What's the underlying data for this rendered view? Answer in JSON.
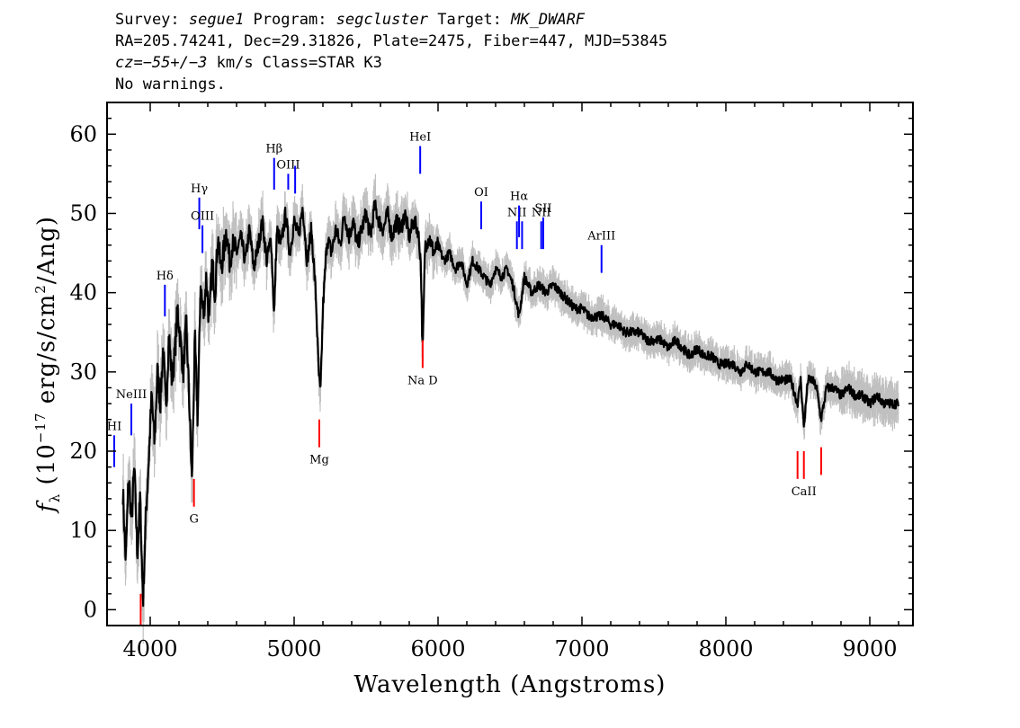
{
  "header": {
    "line1": {
      "survey_label": "Survey: ",
      "survey": "segue1",
      "program_label": " Program: ",
      "program": "segcluster",
      "target_label": " Target: ",
      "target": "MK_DWARF"
    },
    "line2": "RA=205.74241, Dec=29.31826, Plate=2475, Fiber=447, MJD=53845",
    "line3": {
      "cz_label": "cz",
      "cz_value": "=−55+/−3",
      "cz_rest": " km/s Class=STAR K3"
    },
    "line4": "No warnings."
  },
  "chart_data": {
    "type": "line",
    "xlabel": "Wavelength (Angstroms)",
    "ylabel": "f_λ (10^-17 erg/s/cm^2/Ang)",
    "xlim": [
      3700,
      9300
    ],
    "ylim": [
      -2,
      64
    ],
    "xticks": [
      4000,
      5000,
      6000,
      7000,
      8000,
      9000
    ],
    "yticks": [
      0,
      10,
      20,
      30,
      40,
      50,
      60
    ],
    "colors": {
      "flux": "#000000",
      "error": "#c0c0c0",
      "emission": "#0000ff",
      "absorption": "#ff0000"
    },
    "series": [
      {
        "x": [
          3810,
          3830,
          3850,
          3870,
          3890,
          3910,
          3930,
          3950,
          3970,
          3990,
          4010,
          4030,
          4050,
          4070,
          4090,
          4110,
          4130,
          4150,
          4170,
          4190,
          4210,
          4230,
          4250,
          4270,
          4290,
          4310,
          4330,
          4350,
          4370,
          4390,
          4410,
          4430,
          4450,
          4470,
          4490,
          4510,
          4530,
          4550,
          4570,
          4600,
          4630,
          4660,
          4690,
          4720,
          4750,
          4780,
          4810,
          4840,
          4861,
          4880,
          4910,
          4940,
          4970,
          5000,
          5030,
          5060,
          5090,
          5120,
          5150,
          5170,
          5183,
          5200,
          5230,
          5260,
          5290,
          5320,
          5350,
          5380,
          5410,
          5440,
          5470,
          5500,
          5530,
          5560,
          5590,
          5620,
          5650,
          5680,
          5710,
          5740,
          5770,
          5800,
          5830,
          5860,
          5880,
          5893,
          5910,
          5940,
          5970,
          6000,
          6040,
          6080,
          6120,
          6160,
          6200,
          6240,
          6280,
          6320,
          6360,
          6400,
          6440,
          6480,
          6520,
          6563,
          6600,
          6650,
          6700,
          6750,
          6800,
          6850,
          6900,
          6950,
          7000,
          7050,
          7100,
          7150,
          7200,
          7250,
          7300,
          7350,
          7400,
          7450,
          7500,
          7550,
          7600,
          7650,
          7700,
          7750,
          7800,
          7850,
          7900,
          7950,
          8000,
          8050,
          8100,
          8150,
          8200,
          8250,
          8300,
          8350,
          8400,
          8450,
          8498,
          8520,
          8542,
          8570,
          8600,
          8630,
          8662,
          8700,
          8750,
          8800,
          8850,
          8900,
          8950,
          9000,
          9050,
          9100,
          9150,
          9200
        ],
        "y": [
          15,
          6,
          17,
          11,
          18,
          7,
          14,
          1,
          12,
          19,
          27,
          21,
          30,
          26,
          33,
          25,
          35,
          29,
          32,
          38,
          34,
          30,
          36,
          27,
          16,
          34,
          24,
          41,
          37,
          42,
          36,
          44,
          40,
          47,
          43,
          45,
          48,
          44,
          46,
          45,
          47,
          44,
          48,
          43,
          46,
          49,
          44,
          47,
          37,
          48,
          46,
          50,
          45,
          49,
          47,
          51,
          44,
          48,
          40,
          30,
          27,
          38,
          47,
          45,
          48,
          46,
          50,
          47,
          49,
          46,
          48,
          50,
          47,
          51,
          49,
          48,
          50,
          47,
          49,
          48,
          50,
          47,
          49,
          48,
          44,
          32,
          46,
          47,
          45,
          46,
          44,
          45,
          43,
          44,
          41,
          44,
          43,
          42,
          41,
          43,
          42,
          43,
          41,
          37,
          42,
          40,
          41,
          40,
          41,
          40,
          39,
          38,
          38,
          37,
          37,
          37,
          36,
          36,
          35,
          35,
          35,
          34,
          34,
          34,
          33,
          34,
          33,
          32,
          33,
          32,
          32,
          31,
          31,
          31,
          30,
          31,
          30,
          30,
          30,
          29,
          29,
          29,
          26,
          29,
          23,
          29,
          29,
          28,
          24,
          28,
          28,
          27,
          28,
          27,
          27,
          26,
          27,
          26,
          26,
          26
        ]
      }
    ],
    "emission_lines": [
      {
        "name": "HI",
        "x": 3750,
        "y_top": 22,
        "y_bottom": 18
      },
      {
        "name": "NeIII",
        "x": 3869,
        "y_top": 26,
        "y_bottom": 22
      },
      {
        "name": "Hδ",
        "x": 4102,
        "y_top": 41,
        "y_bottom": 37
      },
      {
        "name": "Hγ",
        "x": 4341,
        "y_top": 52,
        "y_bottom": 48
      },
      {
        "name": "OIII",
        "x": 4363,
        "y_top": 48.5,
        "y_bottom": 45
      },
      {
        "name": "Hβ",
        "x": 4861,
        "y_top": 57,
        "y_bottom": 53
      },
      {
        "name": "OIII",
        "x": 4959,
        "y_top": 55,
        "y_bottom": 53
      },
      {
        "name": "",
        "x": 5007,
        "y_top": 56,
        "y_bottom": 52.5
      },
      {
        "name": "HeI",
        "x": 5876,
        "y_top": 58.5,
        "y_bottom": 55
      },
      {
        "name": "OI",
        "x": 6300,
        "y_top": 51.5,
        "y_bottom": 48
      },
      {
        "name": "NII",
        "x": 6548,
        "y_top": 49,
        "y_bottom": 45.5
      },
      {
        "name": "Hα",
        "x": 6563,
        "y_top": 51,
        "y_bottom": 47
      },
      {
        "name": "",
        "x": 6584,
        "y_top": 49,
        "y_bottom": 45.5
      },
      {
        "name": "NII",
        "x": 6717,
        "y_top": 49,
        "y_bottom": 45.5
      },
      {
        "name": "SII",
        "x": 6731,
        "y_top": 49.5,
        "y_bottom": 45.5
      },
      {
        "name": "ArIII",
        "x": 7136,
        "y_top": 46,
        "y_bottom": 42.5
      }
    ],
    "absorption_lines": [
      {
        "name": "",
        "x": 3934,
        "y_top": 2,
        "y_bottom": -2
      },
      {
        "name": "G",
        "x": 4304,
        "y_top": 16.5,
        "y_bottom": 13
      },
      {
        "name": "Mg",
        "x": 5175,
        "y_top": 24,
        "y_bottom": 20.5
      },
      {
        "name": "Na D",
        "x": 5893,
        "y_top": 34,
        "y_bottom": 30.5
      },
      {
        "name": "",
        "x": 8498,
        "y_top": 20,
        "y_bottom": 16.5
      },
      {
        "name": "CaII",
        "x": 8542,
        "y_top": 20,
        "y_bottom": 16.5
      },
      {
        "name": "",
        "x": 8662,
        "y_top": 20.5,
        "y_bottom": 17
      }
    ]
  }
}
